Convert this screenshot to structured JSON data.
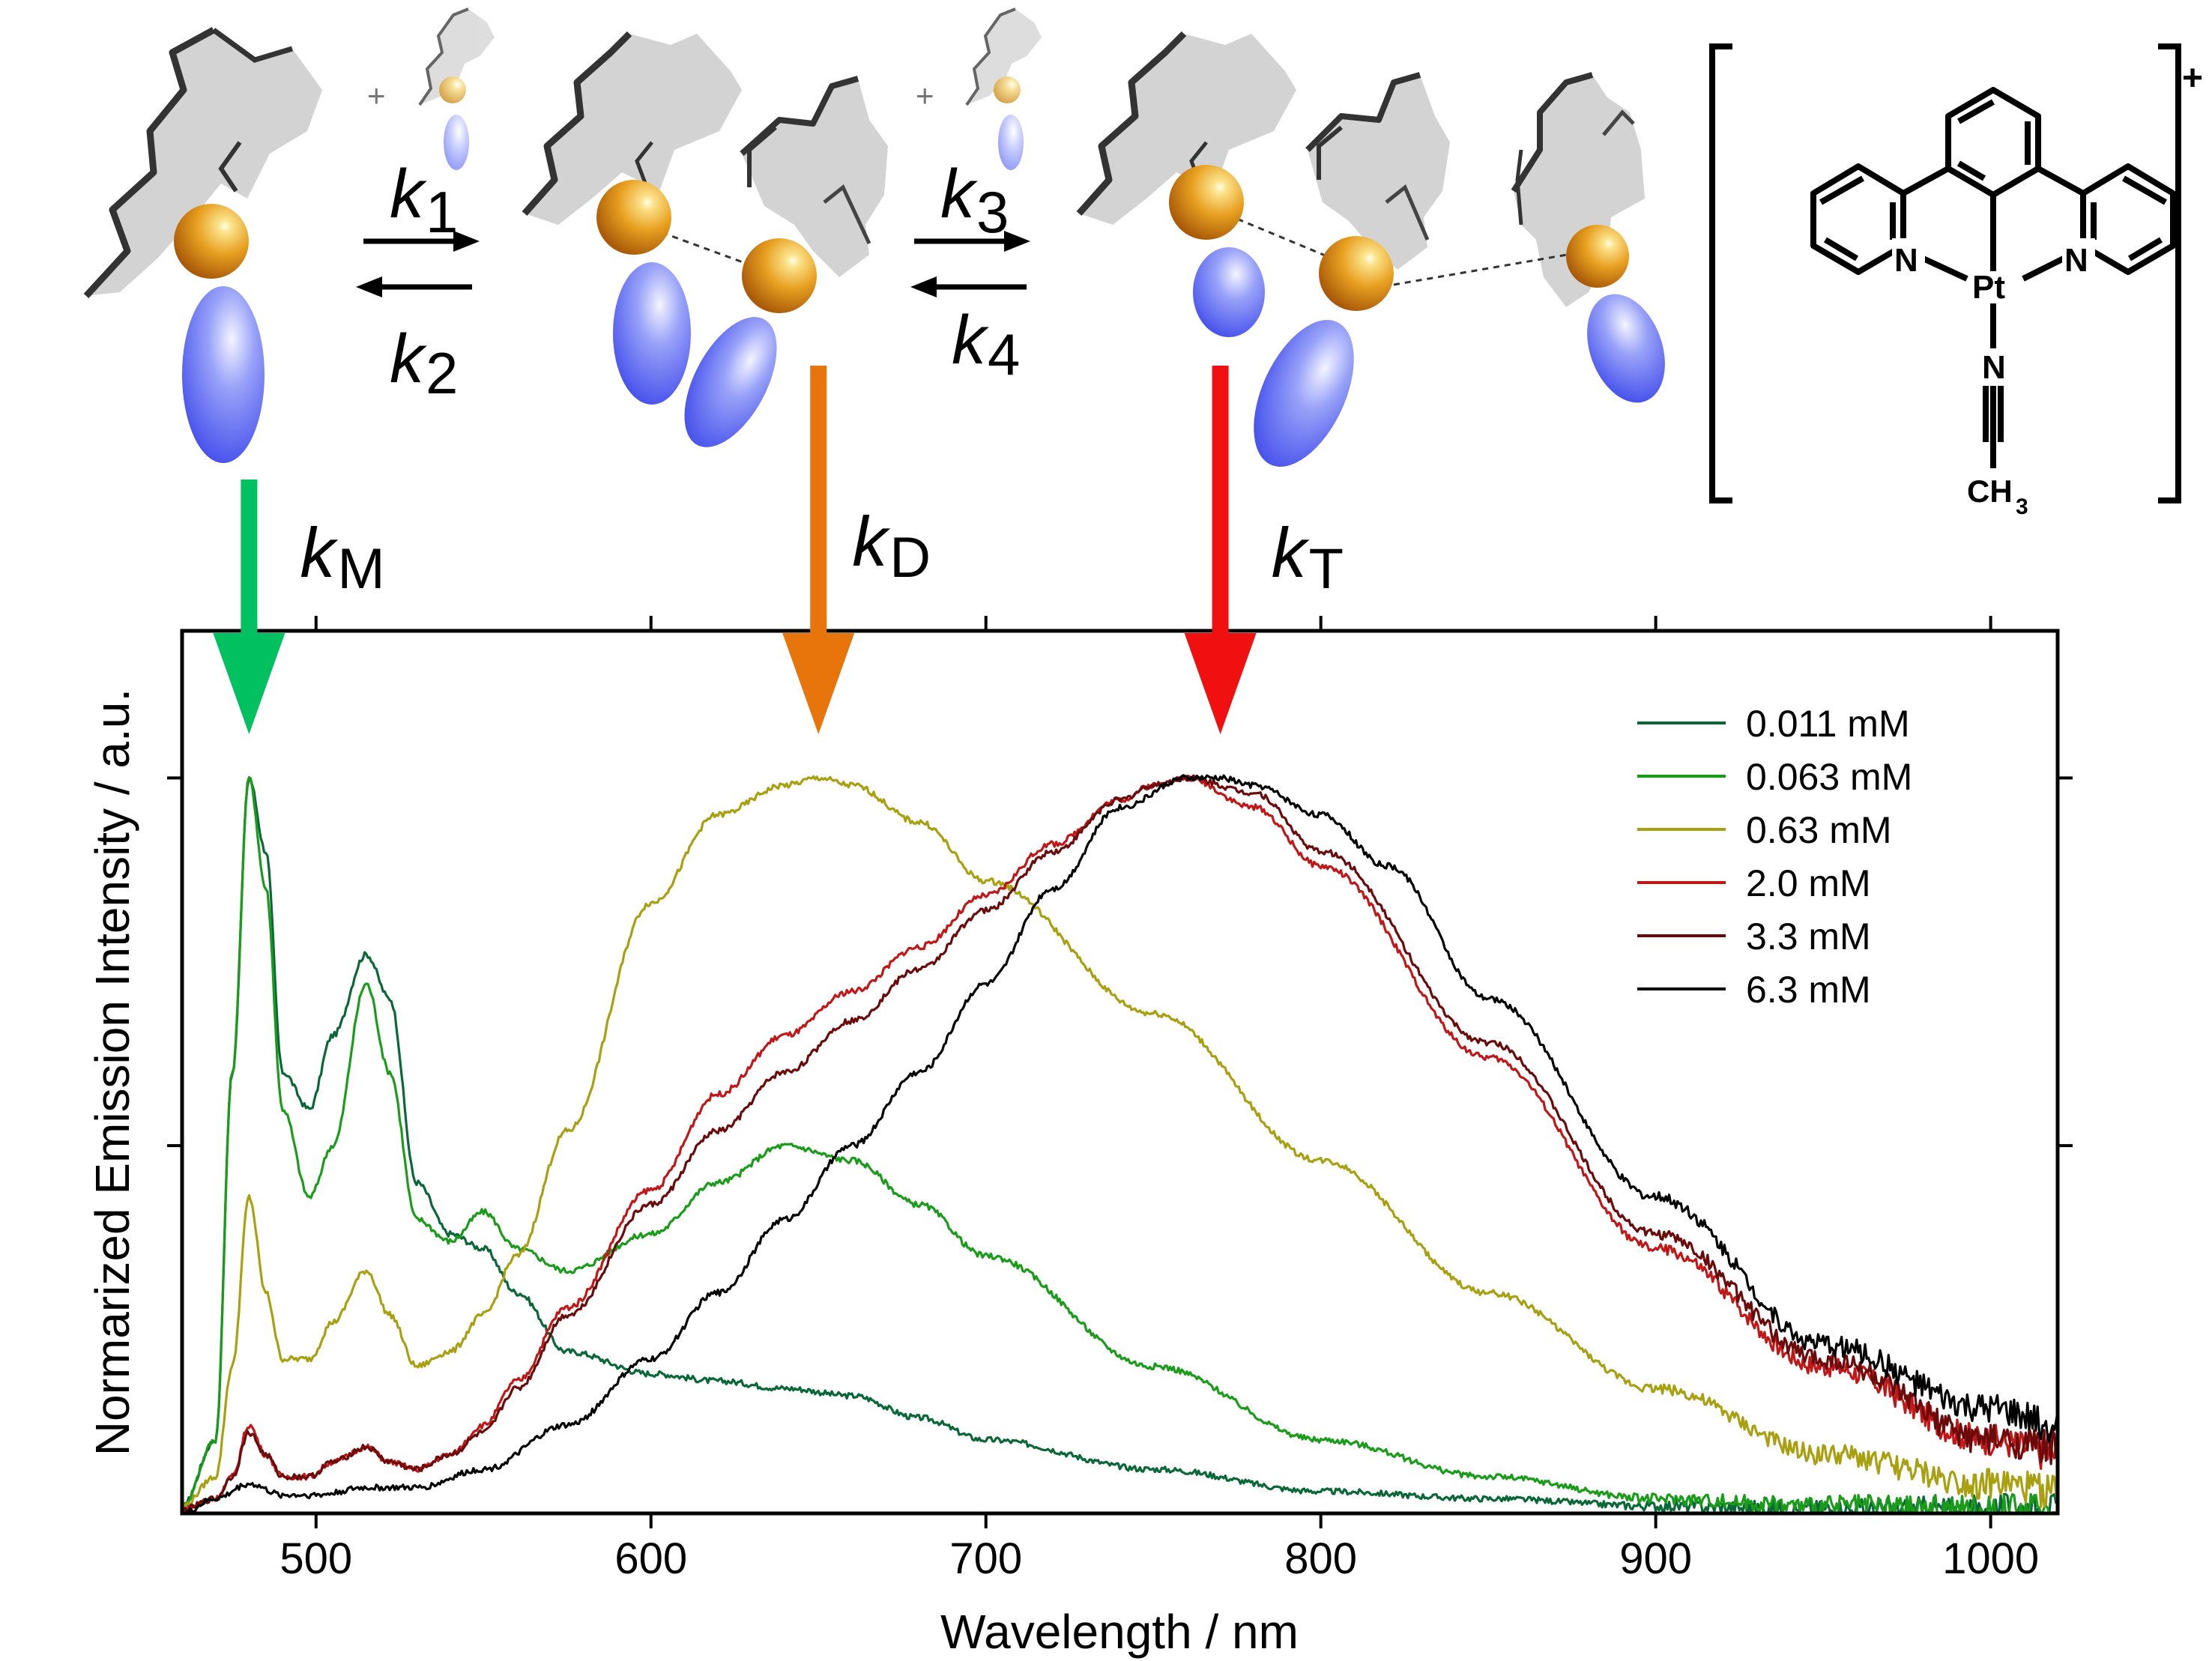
{
  "scheme": {
    "rate_constants": [
      {
        "letter": "k",
        "sub": "1"
      },
      {
        "letter": "k",
        "sub": "2"
      },
      {
        "letter": "k",
        "sub": "3"
      },
      {
        "letter": "k",
        "sub": "4"
      }
    ],
    "plus_signs": [
      "+",
      "+"
    ],
    "emission_rates": [
      {
        "letter": "k",
        "sub": "M",
        "color": "#00c060",
        "wavelength": 480
      },
      {
        "letter": "k",
        "sub": "D",
        "color": "#e8740c",
        "wavelength": 650
      },
      {
        "letter": "k",
        "sub": "T",
        "color": "#f01010",
        "wavelength": 770
      }
    ],
    "structure": {
      "charge": "+",
      "atoms": [
        "N",
        "N",
        "Pt",
        "N",
        "CH",
        "3"
      ]
    },
    "colors": {
      "plate": "#d2d2d2",
      "sphere": "#e8a020",
      "ellipsoid": "#4a58f0"
    }
  },
  "chart_data": {
    "type": "line",
    "xlabel": "Wavelength / nm",
    "ylabel": "Normarized Emission Intensity / a.u.",
    "xlim": [
      460,
      1020
    ],
    "ylim": [
      0,
      1.2
    ],
    "xticks": [
      500,
      600,
      700,
      800,
      900,
      1000
    ],
    "yticks_unlabeled": [
      0.5,
      1.0
    ],
    "legend_position": "top-right",
    "series": [
      {
        "name": "0.011 mM",
        "color": "#0a6838",
        "x": [
          460,
          470,
          475,
          480,
          485,
          490,
          498,
          505,
          515,
          522,
          530,
          540,
          550,
          560,
          575,
          600,
          620,
          640,
          660,
          680,
          700,
          750,
          800,
          850,
          900,
          950,
          1000,
          1020
        ],
        "y": [
          0.01,
          0.1,
          0.6,
          1.0,
          0.9,
          0.6,
          0.55,
          0.65,
          0.76,
          0.7,
          0.45,
          0.38,
          0.36,
          0.3,
          0.22,
          0.19,
          0.18,
          0.17,
          0.16,
          0.13,
          0.1,
          0.06,
          0.03,
          0.02,
          0.01,
          0.005,
          0.005,
          0.005
        ]
      },
      {
        "name": "0.063 mM",
        "color": "#1a9c1a",
        "x": [
          460,
          470,
          475,
          480,
          485,
          490,
          498,
          505,
          515,
          522,
          530,
          540,
          550,
          560,
          575,
          600,
          620,
          640,
          660,
          680,
          700,
          750,
          800,
          850,
          900,
          950,
          1000,
          1020
        ],
        "y": [
          0.01,
          0.1,
          0.6,
          1.0,
          0.85,
          0.55,
          0.43,
          0.5,
          0.72,
          0.6,
          0.4,
          0.37,
          0.41,
          0.36,
          0.33,
          0.38,
          0.45,
          0.5,
          0.48,
          0.42,
          0.35,
          0.2,
          0.1,
          0.05,
          0.02,
          0.01,
          0.005,
          0.005
        ]
      },
      {
        "name": "0.63 mM",
        "color": "#a8a010",
        "x": [
          460,
          470,
          475,
          480,
          485,
          490,
          498,
          505,
          515,
          522,
          530,
          540,
          550,
          560,
          575,
          600,
          620,
          640,
          650,
          660,
          680,
          700,
          750,
          800,
          850,
          900,
          950,
          1000,
          1020
        ],
        "y": [
          0.01,
          0.05,
          0.2,
          0.43,
          0.3,
          0.21,
          0.21,
          0.26,
          0.33,
          0.27,
          0.2,
          0.22,
          0.27,
          0.35,
          0.52,
          0.83,
          0.95,
          0.99,
          1.0,
          0.99,
          0.94,
          0.86,
          0.68,
          0.48,
          0.3,
          0.17,
          0.08,
          0.04,
          0.03
        ]
      },
      {
        "name": "2.0 mM",
        "color": "#c01818",
        "x": [
          460,
          470,
          475,
          480,
          485,
          490,
          498,
          505,
          515,
          522,
          530,
          540,
          550,
          560,
          575,
          600,
          620,
          640,
          660,
          680,
          700,
          720,
          740,
          750,
          760,
          780,
          800,
          850,
          900,
          950,
          1000,
          1020
        ],
        "y": [
          0.005,
          0.02,
          0.05,
          0.12,
          0.08,
          0.05,
          0.05,
          0.07,
          0.09,
          0.07,
          0.06,
          0.08,
          0.12,
          0.18,
          0.28,
          0.44,
          0.57,
          0.65,
          0.71,
          0.77,
          0.84,
          0.91,
          0.97,
          0.99,
          1.0,
          0.96,
          0.88,
          0.62,
          0.36,
          0.2,
          0.1,
          0.08
        ]
      },
      {
        "name": "3.3 mM",
        "color": "#6a0a0a",
        "x": [
          460,
          470,
          475,
          480,
          485,
          490,
          498,
          505,
          515,
          522,
          530,
          540,
          550,
          560,
          575,
          600,
          620,
          640,
          660,
          680,
          700,
          720,
          740,
          750,
          760,
          780,
          800,
          850,
          900,
          950,
          1000,
          1020
        ],
        "y": [
          0.005,
          0.02,
          0.05,
          0.11,
          0.08,
          0.05,
          0.05,
          0.07,
          0.09,
          0.07,
          0.06,
          0.08,
          0.11,
          0.17,
          0.27,
          0.42,
          0.52,
          0.6,
          0.67,
          0.74,
          0.82,
          0.9,
          0.97,
          0.99,
          1.0,
          0.98,
          0.9,
          0.64,
          0.38,
          0.21,
          0.1,
          0.09
        ]
      },
      {
        "name": "6.3 mM",
        "color": "#000000",
        "x": [
          460,
          470,
          480,
          490,
          500,
          515,
          530,
          550,
          575,
          600,
          620,
          640,
          660,
          680,
          700,
          720,
          740,
          760,
          770,
          780,
          800,
          820,
          850,
          900,
          950,
          1000,
          1020
        ],
        "y": [
          0.0,
          0.02,
          0.04,
          0.025,
          0.025,
          0.035,
          0.035,
          0.06,
          0.12,
          0.21,
          0.3,
          0.4,
          0.5,
          0.6,
          0.72,
          0.85,
          0.96,
          1.0,
          1.0,
          0.99,
          0.95,
          0.88,
          0.7,
          0.43,
          0.23,
          0.14,
          0.12
        ]
      }
    ]
  }
}
